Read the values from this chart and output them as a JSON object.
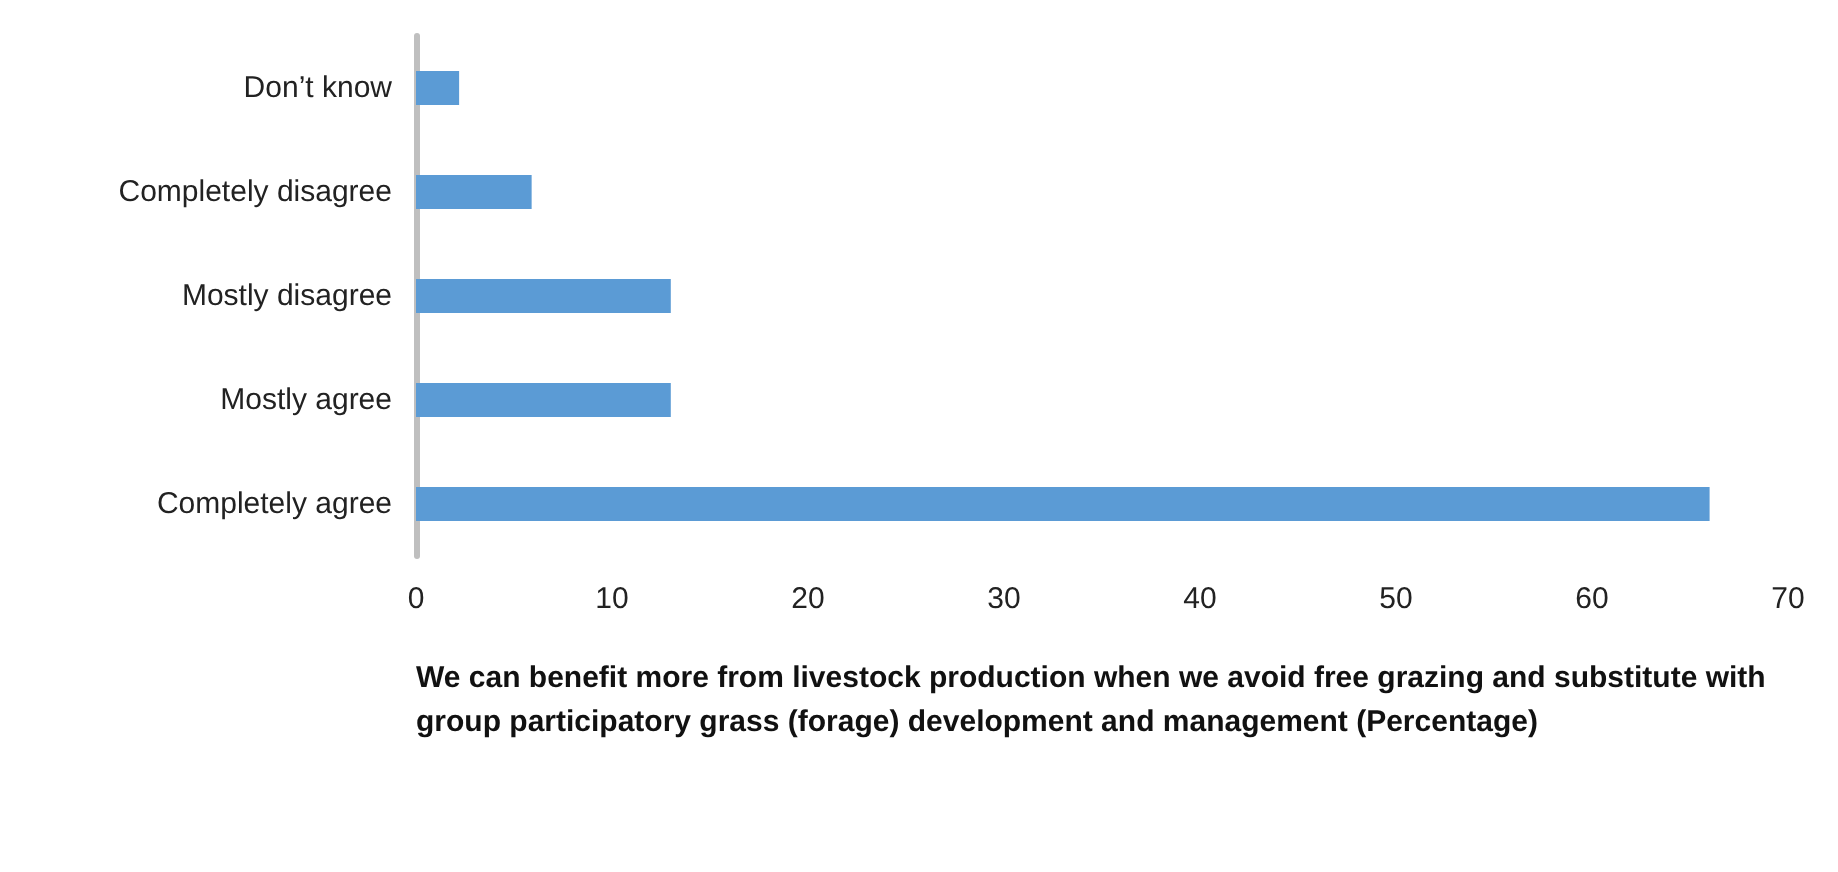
{
  "chart_data": {
    "type": "bar",
    "orientation": "horizontal",
    "categories": [
      "Don’t know",
      "Completely disagree",
      "Mostly disagree",
      "Mostly agree",
      "Completely agree"
    ],
    "values": [
      2.2,
      5.9,
      13,
      13,
      66
    ],
    "color": "#5b9bd5",
    "xlim": [
      0,
      70
    ],
    "xticks": [
      0,
      10,
      20,
      30,
      40,
      50,
      60,
      70
    ],
    "xlabel": "We can benefit more from livestock production when we avoid free grazing and substitute with group participatory grass (forage) development and management (Percentage)",
    "grid": false
  }
}
